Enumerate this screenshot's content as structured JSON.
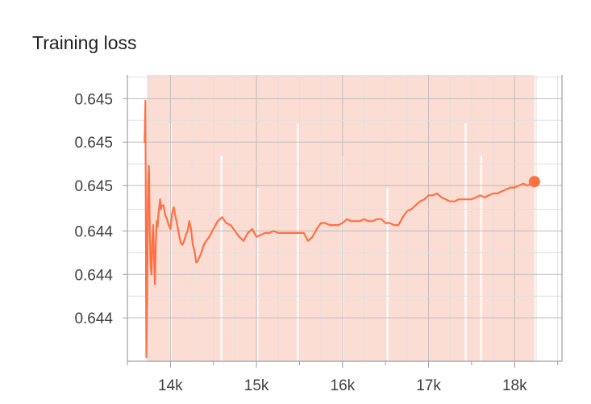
{
  "chart_data": {
    "type": "line",
    "title": "Training loss",
    "xlabel": "",
    "ylabel": "",
    "x_ticks": [
      "14k",
      "15k",
      "16k",
      "17k",
      "18k"
    ],
    "y_ticks": [
      "0.645",
      "0.645",
      "0.645",
      "0.644",
      "0.644",
      "0.644"
    ],
    "xlim": [
      13500,
      18550
    ],
    "ylim": [
      0.64393,
      0.64538
    ],
    "grid": true,
    "colors": {
      "line": "#ff7043",
      "band": "#fbd3c6"
    },
    "series": [
      {
        "x": [
          13700,
          13710,
          13720,
          13730,
          13740,
          13750,
          13760,
          13770,
          13780,
          13790,
          13800,
          13810,
          13820,
          13830,
          13840,
          13850,
          13860,
          13870,
          13880,
          13890,
          13900,
          13920,
          13940,
          13960,
          13980,
          14000,
          14020,
          14040,
          14060,
          14080,
          14100,
          14120,
          14140,
          14160,
          14180,
          14200,
          14220,
          14240,
          14260,
          14280,
          14300,
          14320,
          14340,
          14360,
          14380,
          14400,
          14450,
          14500,
          14550,
          14600,
          14650,
          14700,
          14750,
          14800,
          14850,
          14900,
          14950,
          15000,
          15050,
          15100,
          15150,
          15200,
          15250,
          15300,
          15350,
          15400,
          15450,
          15500,
          15550,
          15600,
          15650,
          15700,
          15750,
          15800,
          15850,
          15900,
          15950,
          16000,
          16050,
          16100,
          16150,
          16200,
          16250,
          16300,
          16350,
          16400,
          16450,
          16500,
          16550,
          16600,
          16650,
          16700,
          16750,
          16800,
          16850,
          16900,
          16950,
          17000,
          17050,
          17100,
          17150,
          17200,
          17250,
          17300,
          17350,
          17400,
          17450,
          17500,
          17550,
          17600,
          17650,
          17700,
          17750,
          17800,
          17850,
          17900,
          17950,
          18000,
          18050,
          18100,
          18150,
          18200,
          18230
        ],
        "y": [
          0.64504,
          0.64525,
          0.64395,
          0.64427,
          0.64483,
          0.64492,
          0.64458,
          0.64441,
          0.64437,
          0.64455,
          0.64462,
          0.64444,
          0.64432,
          0.64452,
          0.64464,
          0.64461,
          0.64467,
          0.64471,
          0.64475,
          0.6447,
          0.64472,
          0.64472,
          0.64467,
          0.64465,
          0.64462,
          0.6446,
          0.64468,
          0.64471,
          0.64466,
          0.64462,
          0.64457,
          0.64453,
          0.64452,
          0.64454,
          0.64457,
          0.64459,
          0.64464,
          0.6446,
          0.64452,
          0.64449,
          0.64443,
          0.64444,
          0.64446,
          0.64448,
          0.64451,
          0.64453,
          0.64456,
          0.6446,
          0.64464,
          0.64466,
          0.64463,
          0.64462,
          0.64459,
          0.64456,
          0.64454,
          0.64458,
          0.6446,
          0.64456,
          0.64457,
          0.64458,
          0.64458,
          0.64459,
          0.64458,
          0.64458,
          0.64458,
          0.64458,
          0.64458,
          0.64458,
          0.64458,
          0.64454,
          0.64456,
          0.6446,
          0.64463,
          0.64463,
          0.64462,
          0.64462,
          0.64462,
          0.64463,
          0.64465,
          0.64464,
          0.64464,
          0.64464,
          0.64465,
          0.64464,
          0.64464,
          0.64465,
          0.64465,
          0.64463,
          0.64463,
          0.64462,
          0.64462,
          0.64466,
          0.64469,
          0.6447,
          0.64472,
          0.64474,
          0.64475,
          0.64477,
          0.64477,
          0.64478,
          0.64476,
          0.64475,
          0.64474,
          0.64474,
          0.64475,
          0.64475,
          0.64475,
          0.64475,
          0.64476,
          0.64477,
          0.64476,
          0.64477,
          0.64478,
          0.64478,
          0.64479,
          0.6448,
          0.64481,
          0.64481,
          0.64482,
          0.64483,
          0.64482,
          0.64483,
          0.64484
        ]
      }
    ]
  }
}
